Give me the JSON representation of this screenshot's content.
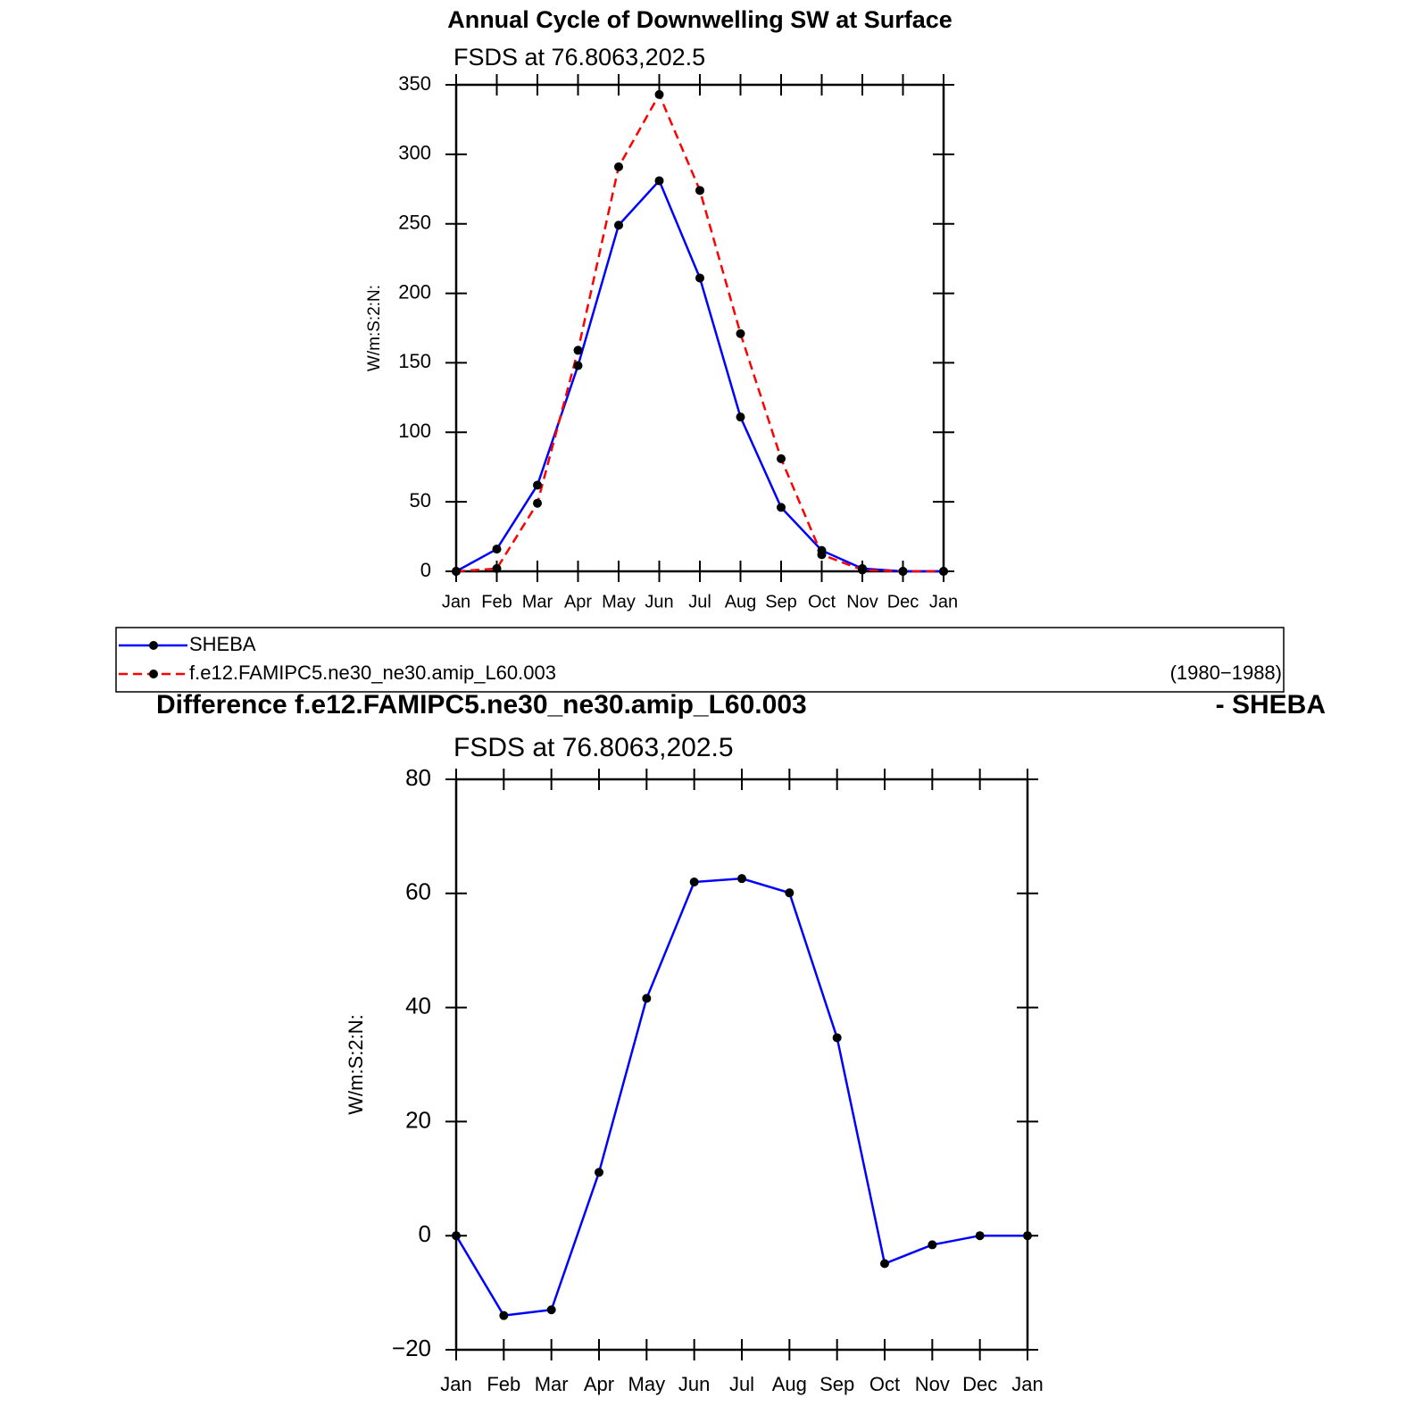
{
  "chart_data": [
    {
      "type": "line",
      "title": "Annual Cycle of Downwelling SW at Surface",
      "subtitle": "FSDS at 76.8063,202.5",
      "y_label": "W/m:S:2:N:",
      "categories": [
        "Jan",
        "Feb",
        "Mar",
        "Apr",
        "May",
        "Jun",
        "Jul",
        "Aug",
        "Sep",
        "Oct",
        "Nov",
        "Dec",
        "Jan"
      ],
      "series": [
        {
          "name": "SHEBA",
          "color": "#0000ff",
          "dash": false,
          "values": [
            0,
            16,
            62,
            148,
            249,
            281,
            211,
            111,
            46,
            15,
            2,
            0,
            0
          ]
        },
        {
          "name": "f.e12.FAMIPC5.ne30_ne30.amip_L60.003",
          "color": "#ff0000",
          "dash": true,
          "values": [
            0,
            2,
            49,
            159,
            291,
            343,
            274,
            171,
            81,
            12,
            1,
            0,
            0
          ]
        }
      ],
      "annotation": "(1980−1988)",
      "marker_color": "#000000",
      "ylim": [
        0,
        350
      ],
      "yticks": [
        0,
        50,
        100,
        150,
        200,
        250,
        300,
        350
      ],
      "grid": false
    },
    {
      "type": "line",
      "title": "Difference f.e12.FAMIPC5.ne30_ne30.amip_L60.003",
      "title_suffix": "- SHEBA",
      "subtitle": "FSDS at 76.8063,202.5",
      "y_label": "W/m:S:2:N:",
      "categories": [
        "Jan",
        "Feb",
        "Mar",
        "Apr",
        "May",
        "Jun",
        "Jul",
        "Aug",
        "Sep",
        "Oct",
        "Nov",
        "Dec",
        "Jan"
      ],
      "series": [
        {
          "color": "#0000ff",
          "dash": false,
          "values": [
            0,
            -14,
            -13,
            11.1,
            41.6,
            62,
            62.6,
            60.1,
            34.7,
            -4.9,
            -1.6,
            0,
            0
          ]
        }
      ],
      "marker_color": "#000000",
      "ylim": [
        -20,
        80
      ],
      "yticks": [
        {
          "value": -20,
          "label": "−20"
        },
        0,
        20,
        40,
        60,
        80
      ],
      "grid": false
    }
  ]
}
